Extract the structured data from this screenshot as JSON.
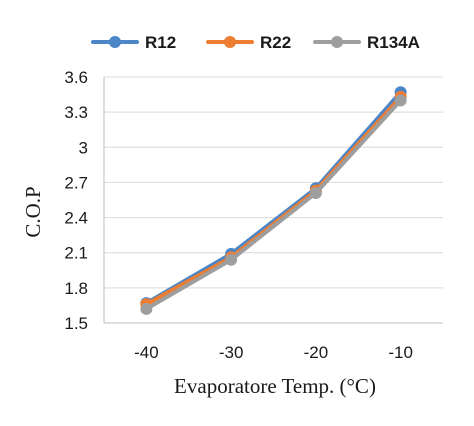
{
  "chart_data": {
    "type": "line",
    "x": [
      -40,
      -30,
      -20,
      -10
    ],
    "x_tick_labels": [
      "-40",
      "-30",
      "-20",
      "-10"
    ],
    "series": [
      {
        "name": "R12",
        "color": "#4a86c8",
        "values": [
          1.67,
          2.09,
          2.65,
          3.47
        ]
      },
      {
        "name": "R22",
        "color": "#ed7d31",
        "values": [
          1.66,
          2.06,
          2.63,
          3.43
        ]
      },
      {
        "name": "R134A",
        "color": "#9e9e9e",
        "values": [
          1.62,
          2.04,
          2.61,
          3.4
        ]
      }
    ],
    "xlabel": "Evaporatore Temp. (°C)",
    "ylabel": "C.O.P",
    "ylim": [
      1.5,
      3.6
    ],
    "y_ticks": [
      1.5,
      1.8,
      2.1,
      2.4,
      2.7,
      3,
      3.3,
      3.6
    ],
    "y_tick_labels": [
      "1.5",
      "1.8",
      "2.1",
      "2.4",
      "2.7",
      "3",
      "3.3",
      "3.6"
    ],
    "grid": "horizontal",
    "legend_position": "top"
  }
}
